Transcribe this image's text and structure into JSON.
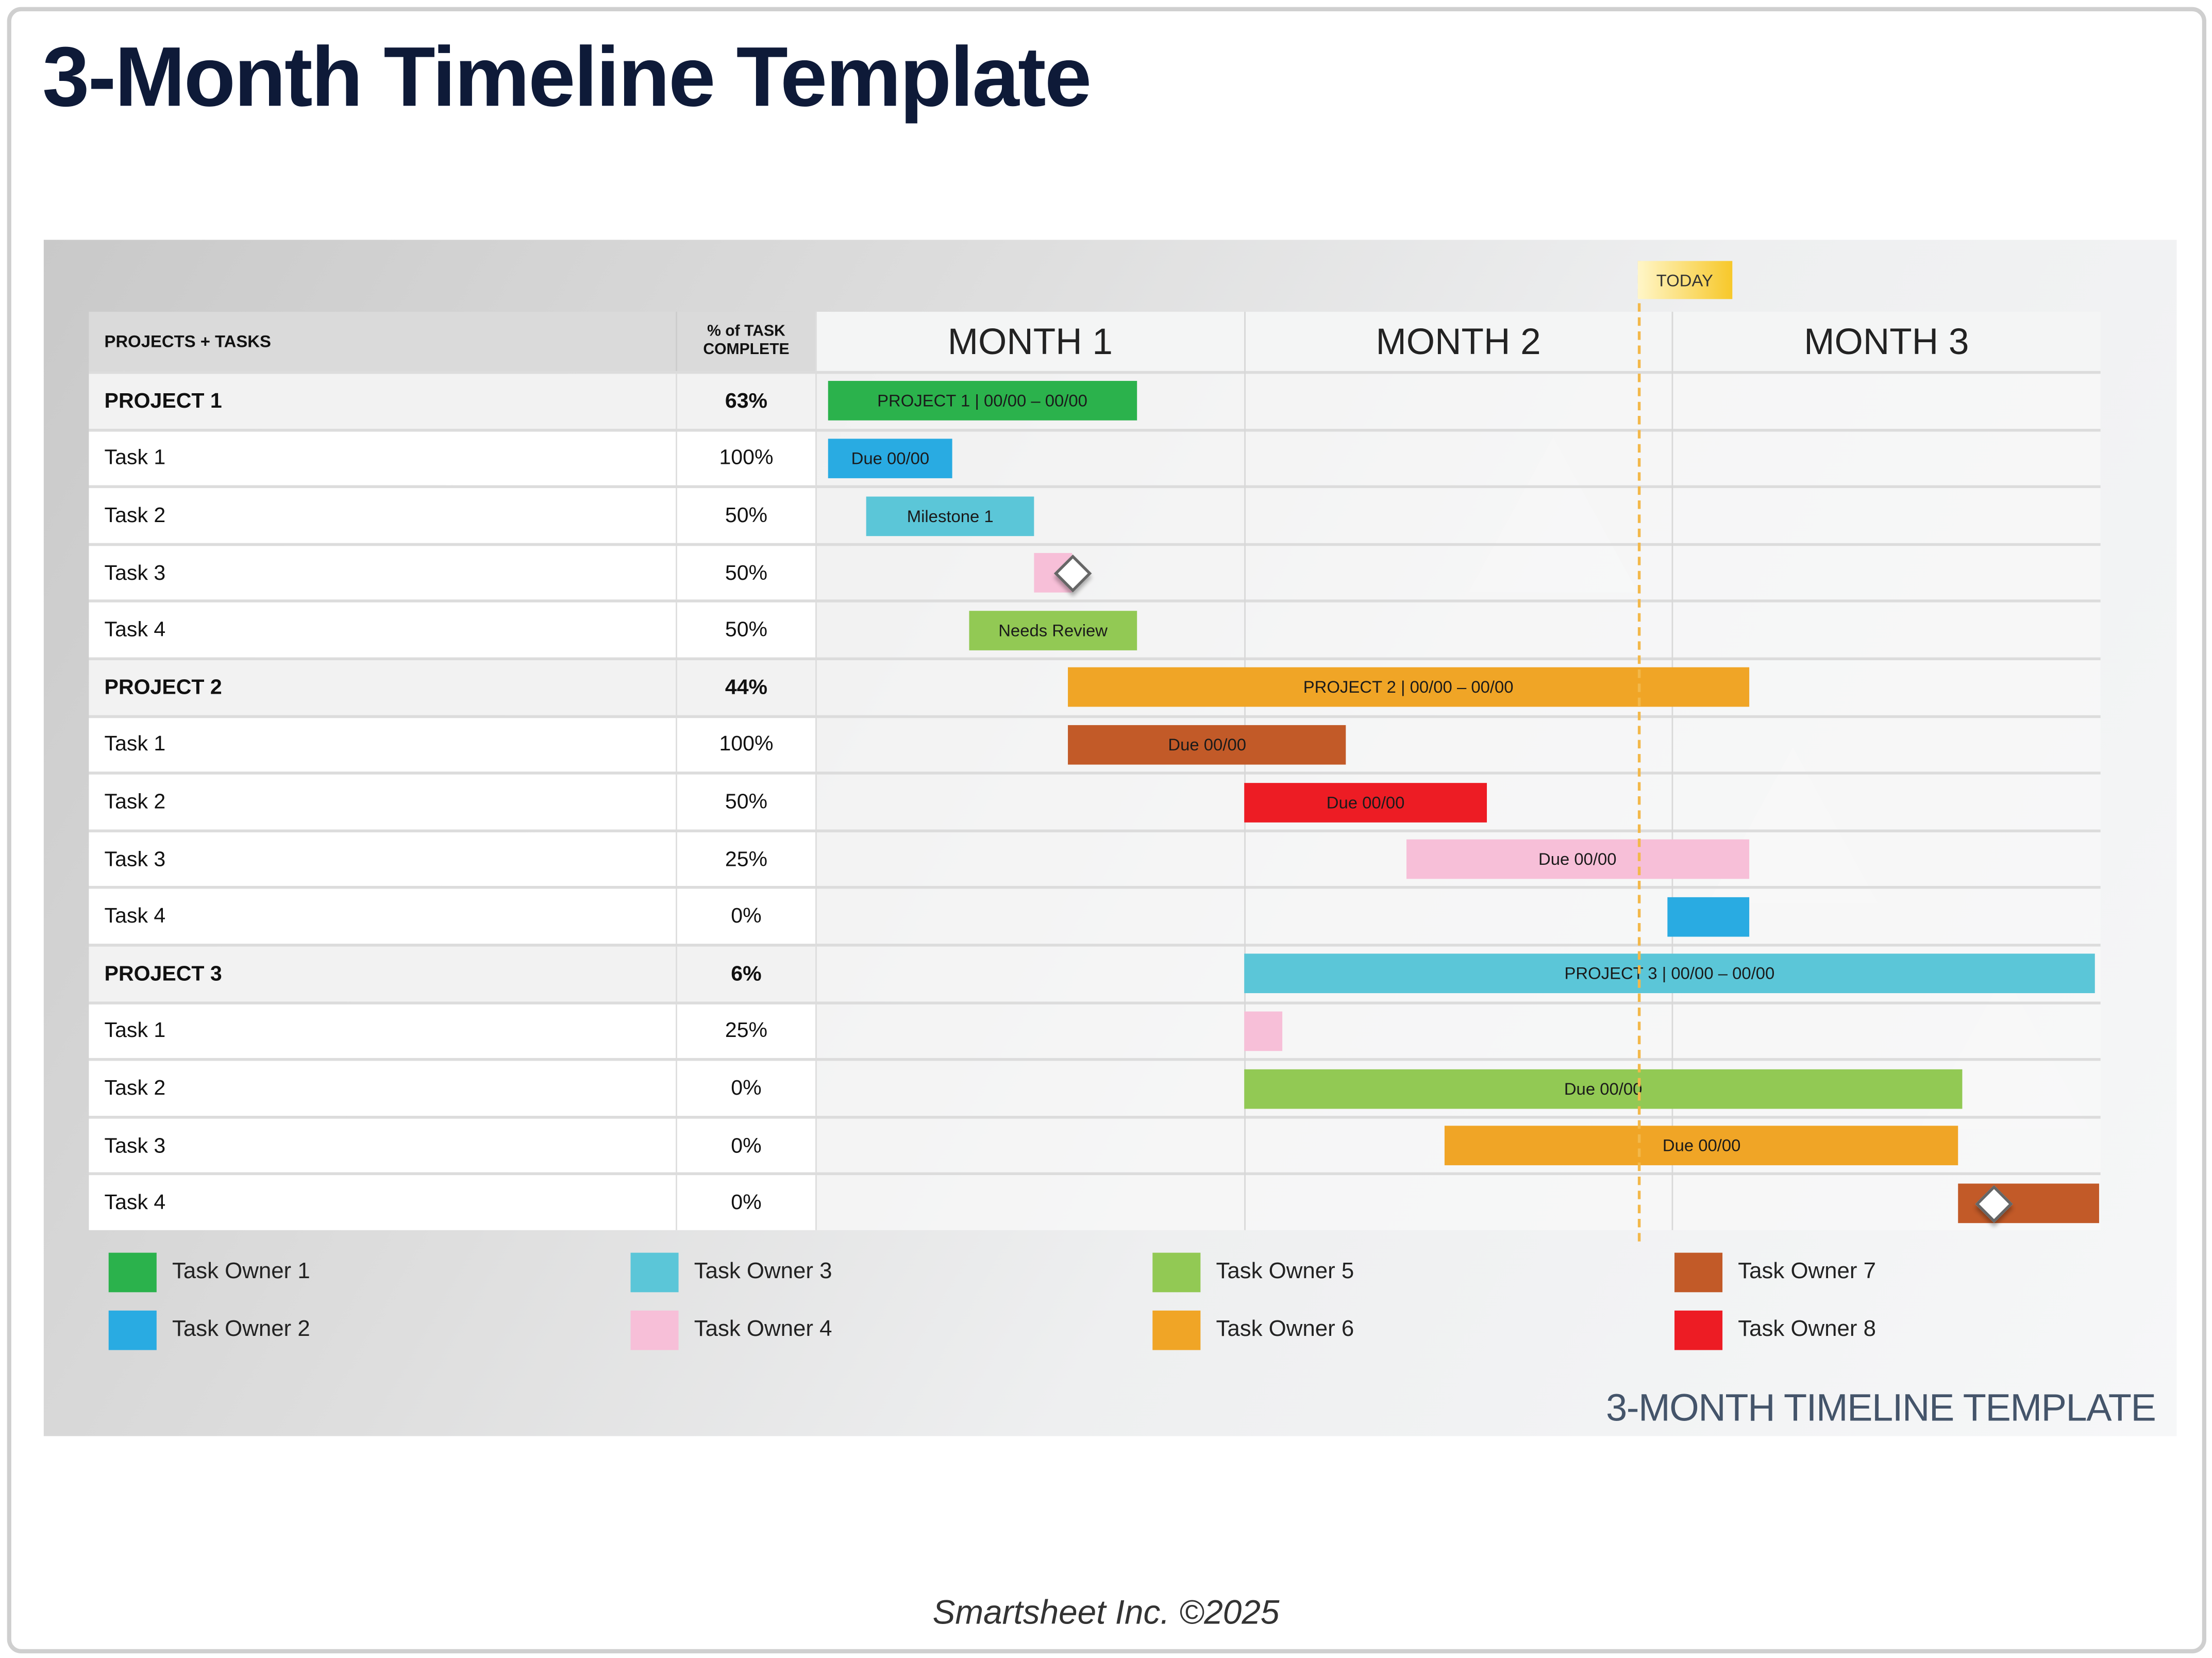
{
  "page": {
    "title": "3-Month Timeline Template",
    "footer_title": "3-MONTH TIMELINE TEMPLATE",
    "credit": "Smartsheet Inc. ©2025"
  },
  "table": {
    "header_projects": "PROJECTS + TASKS",
    "header_pct": "% of TASK COMPLETE",
    "months": [
      "MONTH 1",
      "MONTH 2",
      "MONTH 3"
    ],
    "today_label": "TODAY",
    "today_month_position": 1.92
  },
  "owners": [
    {
      "label": "Task Owner 1",
      "color": "#2bb24c"
    },
    {
      "label": "Task Owner 2",
      "color": "#29abe2"
    },
    {
      "label": "Task Owner 3",
      "color": "#5bc6d8"
    },
    {
      "label": "Task Owner 4",
      "color": "#f7bfd8"
    },
    {
      "label": "Task Owner 5",
      "color": "#92c954"
    },
    {
      "label": "Task Owner 6",
      "color": "#f0a526"
    },
    {
      "label": "Task Owner 7",
      "color": "#c25a28"
    },
    {
      "label": "Task Owner 8",
      "color": "#ed1c24"
    }
  ],
  "rows": [
    {
      "type": "project",
      "name": "PROJECT 1",
      "pct": "63%",
      "bar": {
        "start": 0.03,
        "end": 0.75,
        "owner": 0,
        "label": "PROJECT 1  |  00/00 – 00/00"
      }
    },
    {
      "type": "task",
      "name": "Task 1",
      "pct": "100%",
      "bar": {
        "start": 0.03,
        "end": 0.32,
        "owner": 1,
        "label": "Due 00/00"
      }
    },
    {
      "type": "task",
      "name": "Task 2",
      "pct": "50%",
      "bar": {
        "start": 0.12,
        "end": 0.51,
        "owner": 2,
        "label": "Milestone 1"
      }
    },
    {
      "type": "task",
      "name": "Task 3",
      "pct": "50%",
      "bar": {
        "start": 0.51,
        "end": 0.6,
        "owner": 3,
        "label": "",
        "milestone": 0.6
      }
    },
    {
      "type": "task",
      "name": "Task 4",
      "pct": "50%",
      "bar": {
        "start": 0.36,
        "end": 0.75,
        "owner": 4,
        "label": "Needs Review"
      }
    },
    {
      "type": "project",
      "name": "PROJECT 2",
      "pct": "44%",
      "bar": {
        "start": 0.59,
        "end": 2.18,
        "owner": 5,
        "label": "PROJECT 2  |  00/00 – 00/00"
      }
    },
    {
      "type": "task",
      "name": "Task 1",
      "pct": "100%",
      "bar": {
        "start": 0.59,
        "end": 1.24,
        "owner": 6,
        "label": "Due 00/00"
      }
    },
    {
      "type": "task",
      "name": "Task 2",
      "pct": "50%",
      "bar": {
        "start": 1.0,
        "end": 1.57,
        "owner": 7,
        "label": "Due 00/00"
      }
    },
    {
      "type": "task",
      "name": "Task 3",
      "pct": "25%",
      "bar": {
        "start": 1.38,
        "end": 2.18,
        "owner": 3,
        "label": "Due 00/00"
      }
    },
    {
      "type": "task",
      "name": "Task 4",
      "pct": "0%",
      "bar": {
        "start": 1.99,
        "end": 2.18,
        "owner": 1,
        "label": ""
      }
    },
    {
      "type": "project",
      "name": "PROJECT 3",
      "pct": "6%",
      "bar": {
        "start": 1.0,
        "end": 2.99,
        "owner": 2,
        "label": "PROJECT 3  |  00/00 – 00/00"
      }
    },
    {
      "type": "task",
      "name": "Task 1",
      "pct": "25%",
      "bar": {
        "start": 1.0,
        "end": 1.09,
        "owner": 3,
        "label": ""
      }
    },
    {
      "type": "task",
      "name": "Task 2",
      "pct": "0%",
      "bar": {
        "start": 1.0,
        "end": 2.68,
        "owner": 4,
        "label": "Due 00/00"
      }
    },
    {
      "type": "task",
      "name": "Task 3",
      "pct": "0%",
      "bar": {
        "start": 1.47,
        "end": 2.67,
        "owner": 5,
        "label": "Due 00/00"
      }
    },
    {
      "type": "task",
      "name": "Task 4",
      "pct": "0%",
      "bar": {
        "start": 2.67,
        "end": 3.0,
        "owner": 6,
        "label": "",
        "milestone": 2.75
      }
    }
  ]
}
